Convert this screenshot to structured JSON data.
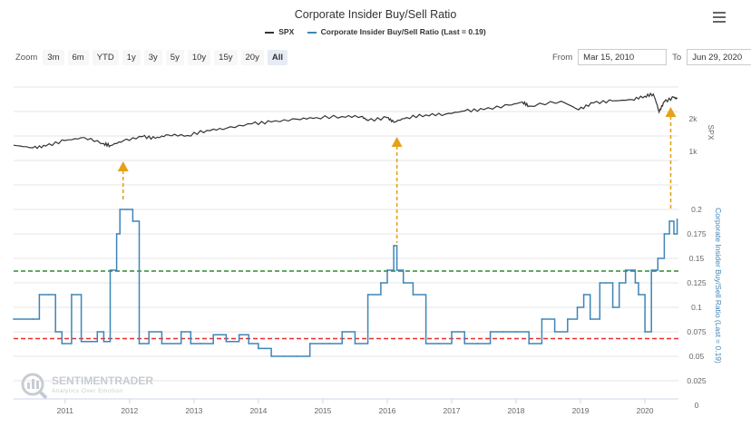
{
  "header": {
    "title": "Corporate Insider Buy/Sell Ratio"
  },
  "legend": {
    "spx_label": "SPX",
    "ratio_label": "Corporate Insider Buy/Sell Ratio (Last = 0.19)"
  },
  "zoom": {
    "label": "Zoom",
    "buttons": [
      "3m",
      "6m",
      "YTD",
      "1y",
      "3y",
      "5y",
      "10y",
      "15y",
      "20y",
      "All"
    ],
    "active": "All"
  },
  "range": {
    "from_label": "From",
    "from_value": "Mar 15, 2010",
    "to_label": "To",
    "to_value": "Jun 29, 2020"
  },
  "watermark": {
    "brand": "SENTIMENTRADER",
    "tagline": "Analytics Over Emotion"
  },
  "colors": {
    "spx": "#333333",
    "ratio": "#3d85b8",
    "green_line": "#2e8b2e",
    "red_line": "#e53030",
    "arrow": "#e3a21a"
  },
  "chart_data": [
    {
      "type": "line",
      "title": "Corporate Insider Buy/Sell Ratio",
      "series": [
        {
          "name": "SPX",
          "ylabel": "SPX",
          "scale": "log",
          "y_ticks": [
            "1k",
            "2k"
          ],
          "x": [
            2010.2,
            2010.5,
            2010.7,
            2011.0,
            2011.3,
            2011.6,
            2011.7,
            2011.9,
            2012.2,
            2012.4,
            2012.6,
            2012.9,
            2013.2,
            2013.5,
            2013.9,
            2014.2,
            2014.6,
            2014.9,
            2015.3,
            2015.6,
            2015.7,
            2016.0,
            2016.1,
            2016.3,
            2016.6,
            2016.9,
            2017.2,
            2017.5,
            2017.9,
            2018.1,
            2018.2,
            2018.7,
            2018.97,
            2019.2,
            2019.5,
            2019.8,
            2020.0,
            2020.13,
            2020.22,
            2020.3,
            2020.45,
            2020.5
          ],
          "values": [
            1140,
            1080,
            1120,
            1260,
            1340,
            1180,
            1130,
            1250,
            1370,
            1320,
            1420,
            1400,
            1560,
            1630,
            1800,
            1870,
            1980,
            2050,
            2100,
            2100,
            1920,
            2050,
            1860,
            2050,
            2170,
            2200,
            2360,
            2430,
            2670,
            2850,
            2620,
            2900,
            2420,
            2800,
            2920,
            3000,
            3230,
            3380,
            2300,
            2860,
            3150,
            3050
          ]
        },
        {
          "name": "Corporate Insider Buy/Sell Ratio (Last = 0.19)",
          "ylabel": "Corporate Insider Buy/Sell Ratio (Last = 0.19)",
          "ylim": [
            0,
            0.2
          ],
          "y_ticks": [
            "0",
            "0.025",
            "0.05",
            "0.075",
            "0.1",
            "0.125",
            "0.15",
            "0.175",
            "0.2"
          ],
          "x": [
            2010.2,
            2010.5,
            2010.6,
            2010.75,
            2010.85,
            2010.95,
            2011.1,
            2011.25,
            2011.4,
            2011.5,
            2011.6,
            2011.7,
            2011.8,
            2011.85,
            2011.95,
            2012.05,
            2012.15,
            2012.3,
            2012.5,
            2012.8,
            2012.95,
            2013.1,
            2013.3,
            2013.5,
            2013.7,
            2013.85,
            2014.0,
            2014.2,
            2014.4,
            2014.6,
            2014.8,
            2015.0,
            2015.1,
            2015.3,
            2015.5,
            2015.7,
            2015.9,
            2016.0,
            2016.1,
            2016.15,
            2016.25,
            2016.4,
            2016.6,
            2016.8,
            2017.0,
            2017.2,
            2017.4,
            2017.6,
            2017.8,
            2018.0,
            2018.2,
            2018.4,
            2018.6,
            2018.8,
            2018.95,
            2019.05,
            2019.15,
            2019.3,
            2019.4,
            2019.5,
            2019.6,
            2019.7,
            2019.8,
            2019.85,
            2019.9,
            2020.0,
            2020.1,
            2020.2,
            2020.3,
            2020.38,
            2020.45,
            2020.5
          ],
          "values": [
            0.088,
            0.088,
            0.113,
            0.113,
            0.075,
            0.063,
            0.113,
            0.065,
            0.065,
            0.075,
            0.065,
            0.138,
            0.175,
            0.2,
            0.2,
            0.188,
            0.063,
            0.075,
            0.063,
            0.075,
            0.063,
            0.063,
            0.072,
            0.065,
            0.072,
            0.063,
            0.058,
            0.05,
            0.05,
            0.05,
            0.063,
            0.063,
            0.063,
            0.075,
            0.063,
            0.113,
            0.125,
            0.138,
            0.163,
            0.138,
            0.125,
            0.113,
            0.063,
            0.063,
            0.075,
            0.063,
            0.063,
            0.075,
            0.075,
            0.075,
            0.063,
            0.088,
            0.075,
            0.088,
            0.1,
            0.113,
            0.088,
            0.125,
            0.125,
            0.1,
            0.125,
            0.138,
            0.138,
            0.125,
            0.113,
            0.075,
            0.138,
            0.15,
            0.175,
            0.188,
            0.175,
            0.19
          ],
          "reference_lines": [
            {
              "value": 0.137,
              "color": "green",
              "style": "dashed"
            },
            {
              "value": 0.068,
              "color": "red",
              "style": "dashed"
            }
          ],
          "annotations": [
            {
              "type": "arrow",
              "x": 2011.9,
              "direction": "up"
            },
            {
              "type": "arrow",
              "x": 2016.15,
              "direction": "up"
            },
            {
              "type": "arrow",
              "x": 2020.4,
              "direction": "up"
            }
          ]
        }
      ],
      "x_ticks": [
        "2011",
        "2012",
        "2013",
        "2014",
        "2015",
        "2016",
        "2017",
        "2018",
        "2019",
        "2020"
      ],
      "grid": true,
      "legend": "top"
    }
  ]
}
